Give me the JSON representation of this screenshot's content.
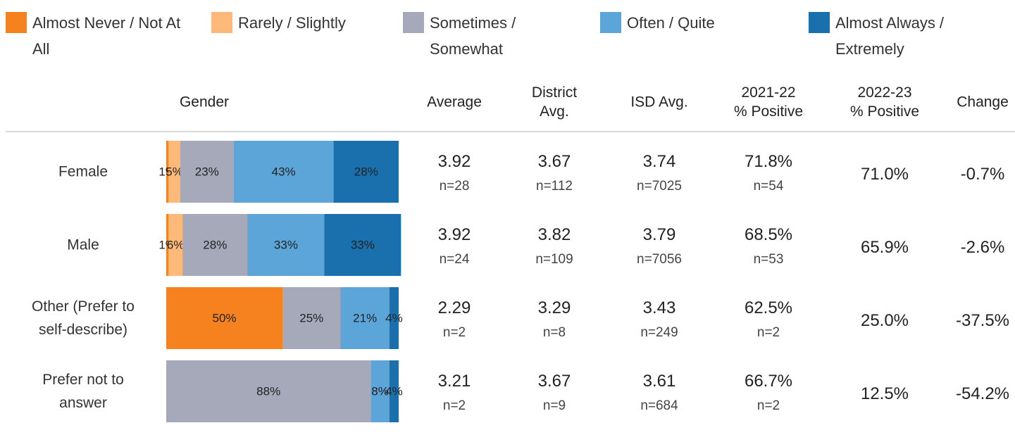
{
  "chart_data": {
    "type": "bar",
    "orientation": "horizontal",
    "stacked": true,
    "categories": [
      "Female",
      "Male",
      "Other (Prefer to self-describe)",
      "Prefer not to answer"
    ],
    "xlim": [
      0,
      100
    ],
    "series": [
      {
        "name": "Almost Never / Not At All",
        "color": "#f5821f",
        "values": [
          1,
          1,
          50,
          null
        ],
        "value_labels": [
          "1%",
          "1%",
          "50%",
          null
        ]
      },
      {
        "name": "Rarely / Slightly",
        "color": "#fdb97a",
        "values": [
          5,
          6,
          null,
          null
        ],
        "value_labels": [
          "5%",
          "6%",
          null,
          null
        ]
      },
      {
        "name": "Sometimes / Somewhat",
        "color": "#a5a9b9",
        "values": [
          23,
          28,
          25,
          88
        ],
        "value_labels": [
          "23%",
          "28%",
          "25%",
          "88%"
        ]
      },
      {
        "name": "Often / Quite",
        "color": "#5ba5d9",
        "values": [
          43,
          33,
          21,
          8
        ],
        "value_labels": [
          "43%",
          "33%",
          "21%",
          "8%"
        ]
      },
      {
        "name": "Almost Always / Extremely",
        "color": "#1a6fad",
        "values": [
          28,
          33,
          4,
          4
        ],
        "value_labels": [
          "28%",
          "33%",
          "4%",
          "4%"
        ]
      }
    ],
    "table": {
      "columns": [
        "Gender",
        "Average",
        "District Avg.",
        "ISD Avg.",
        "2021-22 % Positive",
        "2022-23 % Positive",
        "Change"
      ],
      "rows": [
        [
          [
            "3.92",
            "n=28"
          ],
          [
            "3.67",
            "n=112"
          ],
          [
            "3.74",
            "n=7025"
          ],
          [
            "71.8%",
            "n=54"
          ],
          [
            "71.0%"
          ],
          [
            "-0.7%"
          ]
        ],
        [
          [
            "3.92",
            "n=24"
          ],
          [
            "3.82",
            "n=109"
          ],
          [
            "3.79",
            "n=7056"
          ],
          [
            "68.5%",
            "n=53"
          ],
          [
            "65.9%"
          ],
          [
            "-2.6%"
          ]
        ],
        [
          [
            "2.29",
            "n=2"
          ],
          [
            "3.29",
            "n=8"
          ],
          [
            "3.43",
            "n=249"
          ],
          [
            "62.5%",
            "n=2"
          ],
          [
            "25.0%"
          ],
          [
            "-37.5%"
          ]
        ],
        [
          [
            "3.21",
            "n=2"
          ],
          [
            "3.67",
            "n=9"
          ],
          [
            "3.61",
            "n=684"
          ],
          [
            "66.7%",
            "n=2"
          ],
          [
            "12.5%"
          ],
          [
            "-54.2%"
          ]
        ]
      ]
    }
  }
}
